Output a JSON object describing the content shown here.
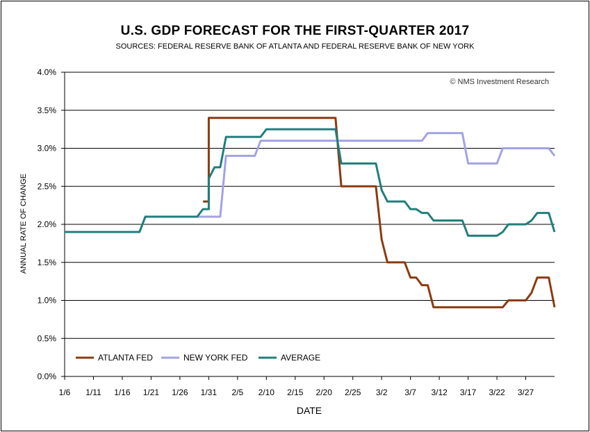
{
  "chart_data": {
    "type": "line",
    "title": "U.S. GDP FORECAST FOR THE FIRST-QUARTER 2017",
    "subtitle": "SOURCES: FEDERAL RESERVE BANK OF ATLANTA AND FEDERAL RESERVE BANK OF NEW YORK",
    "copyright": "© NMS Investment Research",
    "xlabel": "DATE",
    "ylabel": "ANNUAL RATE OF CHANGE",
    "x_start": "1/6",
    "x_tick_labels": [
      "1/6",
      "1/11",
      "1/16",
      "1/21",
      "1/26",
      "1/31",
      "2/5",
      "2/10",
      "2/15",
      "2/20",
      "2/25",
      "3/2",
      "3/7",
      "3/12",
      "3/17",
      "3/22",
      "3/27"
    ],
    "ylim": [
      0.0,
      4.0
    ],
    "y_tick_labels": [
      "0.0%",
      "0.5%",
      "1.0%",
      "1.5%",
      "2.0%",
      "2.5%",
      "3.0%",
      "3.5%",
      "4.0%"
    ],
    "grid": "horizontal",
    "legend_position": "bottom-left",
    "series": [
      {
        "name": "ATLANTA FED",
        "color": "#8B3A0F",
        "points": [
          [
            "1/30",
            2.3
          ],
          [
            "1/31",
            2.3
          ],
          [
            "1/31",
            3.4
          ],
          [
            "2/1",
            3.4
          ],
          [
            "2/21",
            3.4
          ],
          [
            "2/22",
            3.4
          ],
          [
            "2/23",
            2.5
          ],
          [
            "3/1",
            2.5
          ],
          [
            "3/2",
            1.8
          ],
          [
            "3/3",
            1.5
          ],
          [
            "3/6",
            1.5
          ],
          [
            "3/7",
            1.3
          ],
          [
            "3/8",
            1.3
          ],
          [
            "3/9",
            1.2
          ],
          [
            "3/10",
            1.2
          ],
          [
            "3/11",
            0.91
          ],
          [
            "3/23",
            0.91
          ],
          [
            "3/24",
            1.0
          ],
          [
            "3/27",
            1.0
          ],
          [
            "3/28",
            1.1
          ],
          [
            "3/29",
            1.3
          ],
          [
            "3/31",
            1.3
          ],
          [
            "4/1",
            0.91
          ]
        ]
      },
      {
        "name": "NEW YORK FED",
        "color": "#A2A2E6",
        "points": [
          [
            "1/6",
            1.9
          ],
          [
            "1/19",
            1.9
          ],
          [
            "1/20",
            2.1
          ],
          [
            "1/30",
            2.1
          ],
          [
            "1/31",
            2.1
          ],
          [
            "2/2",
            2.1
          ],
          [
            "2/3",
            2.9
          ],
          [
            "2/8",
            2.9
          ],
          [
            "2/9",
            3.1
          ],
          [
            "2/22",
            3.1
          ],
          [
            "3/9",
            3.1
          ],
          [
            "3/10",
            3.2
          ],
          [
            "3/15",
            3.2
          ],
          [
            "3/16",
            3.2
          ],
          [
            "3/17",
            2.8
          ],
          [
            "3/22",
            2.8
          ],
          [
            "3/23",
            3.0
          ],
          [
            "3/31",
            3.0
          ],
          [
            "4/1",
            2.9
          ]
        ]
      },
      {
        "name": "AVERAGE",
        "color": "#1F7E7B",
        "points": [
          [
            "1/6",
            1.9
          ],
          [
            "1/19",
            1.9
          ],
          [
            "1/20",
            2.1
          ],
          [
            "1/29",
            2.1
          ],
          [
            "1/30",
            2.2
          ],
          [
            "1/31",
            2.2
          ],
          [
            "1/31",
            2.6
          ],
          [
            "2/1",
            2.75
          ],
          [
            "2/2",
            2.75
          ],
          [
            "2/3",
            3.15
          ],
          [
            "2/9",
            3.15
          ],
          [
            "2/10",
            3.25
          ],
          [
            "2/22",
            3.25
          ],
          [
            "2/23",
            2.8
          ],
          [
            "3/1",
            2.8
          ],
          [
            "3/2",
            2.45
          ],
          [
            "3/3",
            2.3
          ],
          [
            "3/6",
            2.3
          ],
          [
            "3/7",
            2.2
          ],
          [
            "3/8",
            2.2
          ],
          [
            "3/9",
            2.15
          ],
          [
            "3/10",
            2.15
          ],
          [
            "3/11",
            2.05
          ],
          [
            "3/15",
            2.05
          ],
          [
            "3/16",
            2.05
          ],
          [
            "3/17",
            1.85
          ],
          [
            "3/22",
            1.85
          ],
          [
            "3/23",
            1.9
          ],
          [
            "3/24",
            2.0
          ],
          [
            "3/27",
            2.0
          ],
          [
            "3/28",
            2.05
          ],
          [
            "3/29",
            2.15
          ],
          [
            "3/31",
            2.15
          ],
          [
            "4/1",
            1.9
          ]
        ]
      }
    ]
  }
}
